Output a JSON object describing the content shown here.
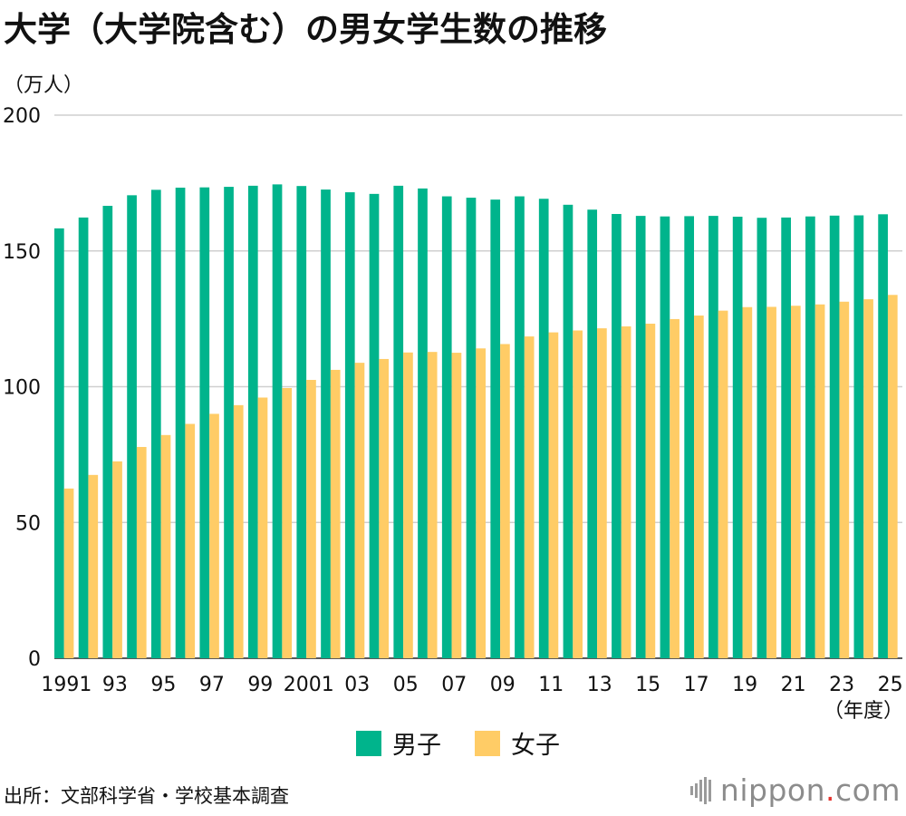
{
  "chart_data": {
    "type": "bar",
    "title": "大学（大学院含む）の男女学生数の推移",
    "ylabel": "（万人）",
    "xlabel": "（年度）",
    "ylim": [
      0,
      200
    ],
    "yticks": [
      "0",
      "50",
      "100",
      "150",
      "200"
    ],
    "categories": [
      "1991",
      "1992",
      "1993",
      "1994",
      "1995",
      "1996",
      "1997",
      "1998",
      "1999",
      "2000",
      "2001",
      "2002",
      "2003",
      "2004",
      "2005",
      "2006",
      "2007",
      "2008",
      "2009",
      "2010",
      "2011",
      "2012",
      "2013",
      "2014",
      "2015",
      "2016",
      "2017",
      "2018",
      "2019",
      "2020",
      "2021",
      "2022",
      "2023",
      "2024",
      "2025"
    ],
    "xtick_labels": [
      "1991",
      "",
      "93",
      "",
      "95",
      "",
      "97",
      "",
      "99",
      "",
      "2001",
      "",
      "03",
      "",
      "05",
      "",
      "07",
      "",
      "09",
      "",
      "11",
      "",
      "13",
      "",
      "15",
      "",
      "17",
      "",
      "19",
      "",
      "21",
      "",
      "23",
      "",
      "25"
    ],
    "series": [
      {
        "name": "男子",
        "color": "#00b48c",
        "values": [
          158.3,
          162.3,
          166.6,
          170.5,
          172.5,
          173.3,
          173.4,
          173.6,
          174.0,
          174.5,
          173.9,
          172.6,
          171.6,
          171.0,
          174.0,
          173.0,
          170.1,
          169.6,
          168.9,
          170.1,
          169.2,
          167.0,
          165.2,
          163.6,
          162.9,
          162.7,
          162.8,
          162.9,
          162.6,
          162.2,
          162.3,
          162.7,
          163.0,
          163.1,
          163.5
        ]
      },
      {
        "name": "女子",
        "color": "#ffcc66",
        "values": [
          62.5,
          67.5,
          72.5,
          77.8,
          82.2,
          86.3,
          90.0,
          93.2,
          96.0,
          99.5,
          102.5,
          106.2,
          108.8,
          110.2,
          112.6,
          112.8,
          112.5,
          114.1,
          115.7,
          118.5,
          120.0,
          120.7,
          121.5,
          122.2,
          123.2,
          124.9,
          126.2,
          128.0,
          129.3,
          129.4,
          129.8,
          130.3,
          131.3,
          132.2,
          133.8
        ]
      }
    ]
  },
  "source": "出所：文部科学省・学校基本調査",
  "logo": {
    "name": "nippon",
    "dot": ".",
    "suffix": "com"
  }
}
